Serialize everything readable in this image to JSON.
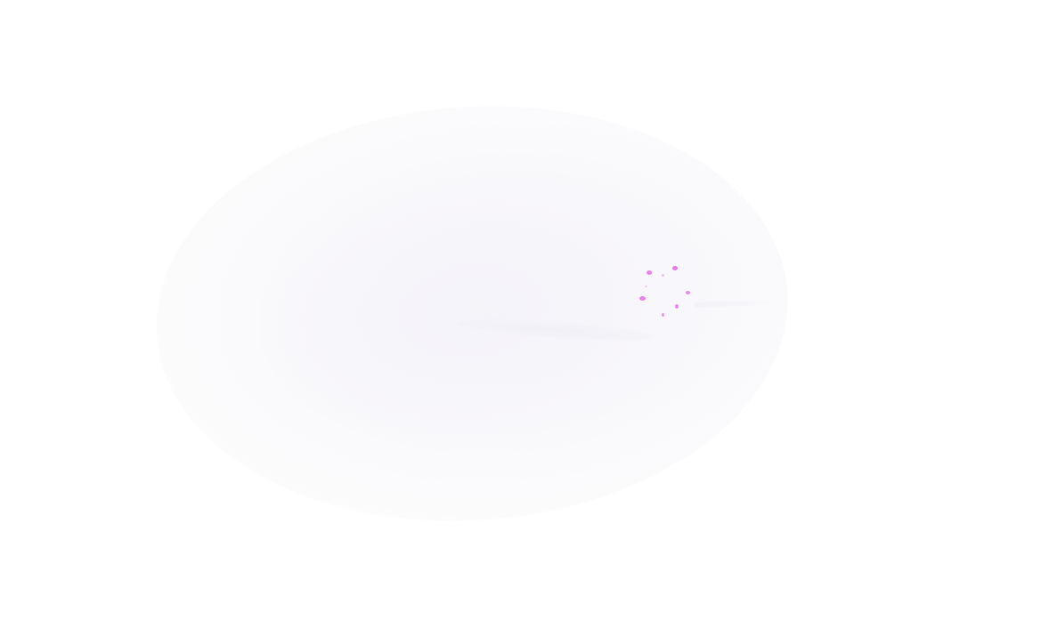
{
  "screen": {
    "state": "loading",
    "background_color": "#ffffff"
  },
  "loader": {
    "icon": "loading-spinner-icon",
    "accent_color": "#e77ce9"
  }
}
